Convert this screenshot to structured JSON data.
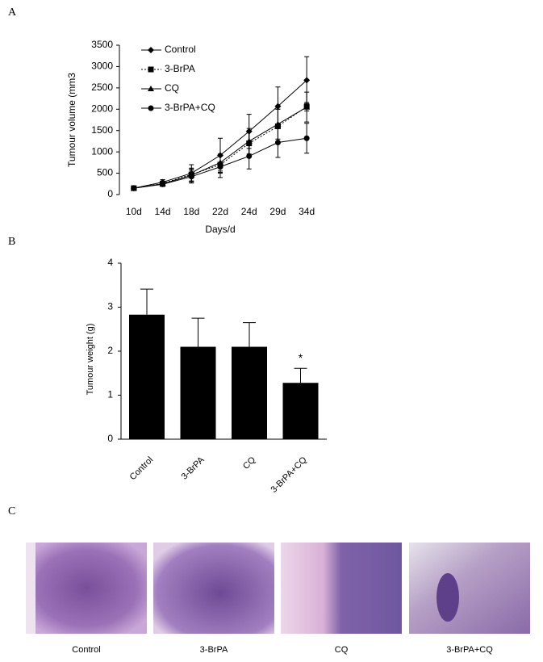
{
  "panel_labels": [
    "A",
    "B",
    "C"
  ],
  "chart_data": [
    {
      "type": "line",
      "ylabel": "Tumour volume (mm3",
      "xlabel": "Days/d",
      "categories": [
        "10d",
        "14d",
        "18d",
        "22d",
        "24d",
        "29d",
        "34d"
      ],
      "ylim": [
        0,
        3500
      ],
      "yticks": [
        0,
        500,
        1000,
        1500,
        2000,
        2500,
        3000,
        3500
      ],
      "series": [
        {
          "name": "Control",
          "color": "#000000",
          "marker": "diamond",
          "dash": "solid",
          "values": [
            150,
            290,
            500,
            920,
            1480,
            2070,
            2680
          ],
          "errors": [
            30,
            60,
            200,
            400,
            400,
            450,
            550
          ]
        },
        {
          "name": "3-BrPA",
          "color": "#000000",
          "marker": "square",
          "dash": "dotted",
          "values": [
            150,
            260,
            470,
            700,
            1200,
            1600,
            2060
          ],
          "errors": [
            30,
            50,
            150,
            200,
            300,
            400,
            100
          ]
        },
        {
          "name": "CQ",
          "color": "#000000",
          "marker": "triangle",
          "dash": "solid",
          "values": [
            150,
            250,
            450,
            750,
            1250,
            1650,
            2050
          ],
          "errors": [
            30,
            50,
            150,
            200,
            300,
            350,
            350
          ]
        },
        {
          "name": "3-BrPA+CQ",
          "color": "#000000",
          "marker": "circle",
          "dash": "solid",
          "values": [
            150,
            240,
            420,
            650,
            900,
            1220,
            1320
          ],
          "errors": [
            30,
            50,
            150,
            250,
            300,
            350,
            350
          ]
        }
      ]
    },
    {
      "type": "bar",
      "ylabel": "Tumour weight (g)",
      "categories": [
        "Control",
        "3-BrPA",
        "CQ",
        "3-BrPA+CQ"
      ],
      "values": [
        2.83,
        2.1,
        2.1,
        1.28
      ],
      "errors": [
        0.58,
        0.65,
        0.55,
        0.33
      ],
      "significance": [
        null,
        null,
        null,
        "*"
      ],
      "color": "#000000",
      "ylim": [
        0,
        4
      ],
      "yticks": [
        0,
        1,
        2,
        3,
        4
      ]
    }
  ],
  "images": {
    "labels": [
      "Control",
      "3-BrPA",
      "CQ",
      "3-BrPA+CQ"
    ]
  }
}
